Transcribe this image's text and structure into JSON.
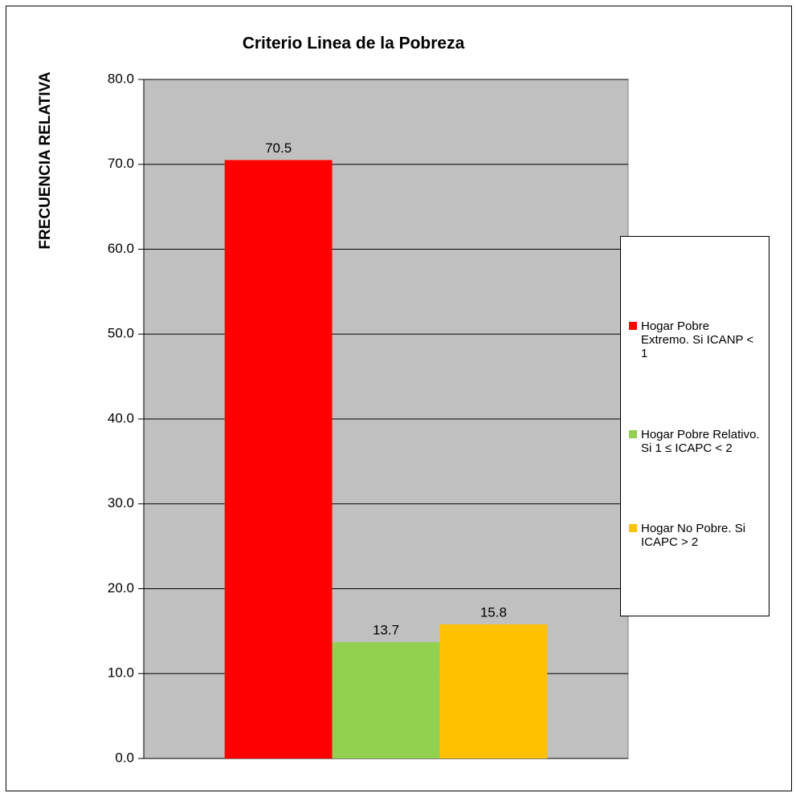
{
  "chart_data": {
    "type": "bar",
    "title": "Criterio Linea de la Pobreza",
    "ylabel": "FRECUENCIA RELATIVA",
    "categories": [
      null
    ],
    "series": [
      {
        "name": "Hogar Pobre Extremo. Si ICANP < 1",
        "color": "#ff0000",
        "values": [
          70.5
        ]
      },
      {
        "name": "Hogar Pobre Relativo. Si 1 ≤ ICAPC < 2",
        "color": "#92d050",
        "values": [
          13.7
        ]
      },
      {
        "name": "Hogar No Pobre. Si ICAPC > 2",
        "color": "#ffc000",
        "values": [
          15.8
        ]
      }
    ],
    "ylim": [
      0,
      80
    ],
    "yticks": [
      {
        "value": 0,
        "label": "0.0"
      },
      {
        "value": 10,
        "label": "10.0"
      },
      {
        "value": 20,
        "label": "20.0"
      },
      {
        "value": 30,
        "label": "30.0"
      },
      {
        "value": 40,
        "label": "40.0"
      },
      {
        "value": 50,
        "label": "50.0"
      },
      {
        "value": 60,
        "label": "60.0"
      },
      {
        "value": 70,
        "label": "70.0"
      },
      {
        "value": 80,
        "label": "80.0"
      }
    ],
    "grid": true,
    "legend": "right"
  }
}
